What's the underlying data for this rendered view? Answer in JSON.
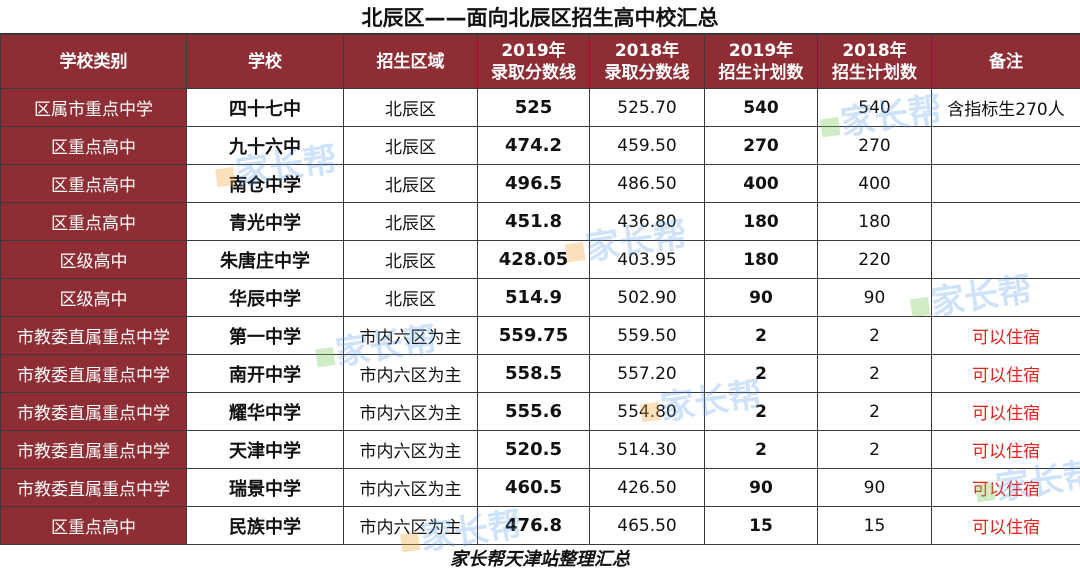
{
  "title": "北辰区——面向北辰区招生高中校汇总",
  "headers": {
    "category": "学校类别",
    "school": "学校",
    "area": "招生区域",
    "score2019_l1": "2019年",
    "score2019_l2": "录取分数线",
    "score2018_l1": "2018年",
    "score2018_l2": "录取分数线",
    "plan2019_l1": "2019年",
    "plan2019_l2": "招生计划数",
    "plan2018_l1": "2018年",
    "plan2018_l2": "招生计划数",
    "note": "备注"
  },
  "rows": [
    {
      "category": "区属市重点中学",
      "school": "四十七中",
      "area": "北辰区",
      "score2019": "525",
      "score2018": "525.70",
      "plan2019": "540",
      "plan2018": "540",
      "note": "含指标生270人"
    },
    {
      "category": "区重点高中",
      "school": "九十六中",
      "area": "北辰区",
      "score2019": "474.2",
      "score2018": "459.50",
      "plan2019": "270",
      "plan2018": "270",
      "note": ""
    },
    {
      "category": "区重点高中",
      "school": "南仓中学",
      "area": "北辰区",
      "score2019": "496.5",
      "score2018": "486.50",
      "plan2019": "400",
      "plan2018": "400",
      "note": ""
    },
    {
      "category": "区重点高中",
      "school": "青光中学",
      "area": "北辰区",
      "score2019": "451.8",
      "score2018": "436.80",
      "plan2019": "180",
      "plan2018": "180",
      "note": ""
    },
    {
      "category": "区级高中",
      "school": "朱唐庄中学",
      "area": "北辰区",
      "score2019": "428.05",
      "score2018": "403.95",
      "plan2019": "180",
      "plan2018": "220",
      "note": ""
    },
    {
      "category": "区级高中",
      "school": "华辰中学",
      "area": "北辰区",
      "score2019": "514.9",
      "score2018": "502.90",
      "plan2019": "90",
      "plan2018": "90",
      "note": ""
    },
    {
      "category": "市教委直属重点中学",
      "school": "第一中学",
      "area": "市内六区为主",
      "score2019": "559.75",
      "score2018": "559.50",
      "plan2019": "2",
      "plan2018": "2",
      "note": "可以住宿"
    },
    {
      "category": "市教委直属重点中学",
      "school": "南开中学",
      "area": "市内六区为主",
      "score2019": "558.5",
      "score2018": "557.20",
      "plan2019": "2",
      "plan2018": "2",
      "note": "可以住宿"
    },
    {
      "category": "市教委直属重点中学",
      "school": "耀华中学",
      "area": "市内六区为主",
      "score2019": "555.6",
      "score2018": "554.80",
      "plan2019": "2",
      "plan2018": "2",
      "note": "可以住宿"
    },
    {
      "category": "市教委直属重点中学",
      "school": "天津中学",
      "area": "市内六区为主",
      "score2019": "520.5",
      "score2018": "514.30",
      "plan2019": "2",
      "plan2018": "2",
      "note": "可以住宿"
    },
    {
      "category": "市教委直属重点中学",
      "school": "瑞景中学",
      "area": "市内六区为主",
      "score2019": "460.5",
      "score2018": "426.50",
      "plan2019": "90",
      "plan2018": "90",
      "note": "可以住宿"
    },
    {
      "category": "区重点高中",
      "school": "民族中学",
      "area": "市内六区为主",
      "score2019": "476.8",
      "score2018": "465.50",
      "plan2019": "15",
      "plan2018": "15",
      "note": "可以住宿"
    }
  ],
  "footer": "家长帮天津站整理汇总",
  "watermark": "家长帮",
  "colors": {
    "header_bg": "#8e2d33",
    "note_red": "#e8201e",
    "watermark_blue": "#5096eb"
  }
}
